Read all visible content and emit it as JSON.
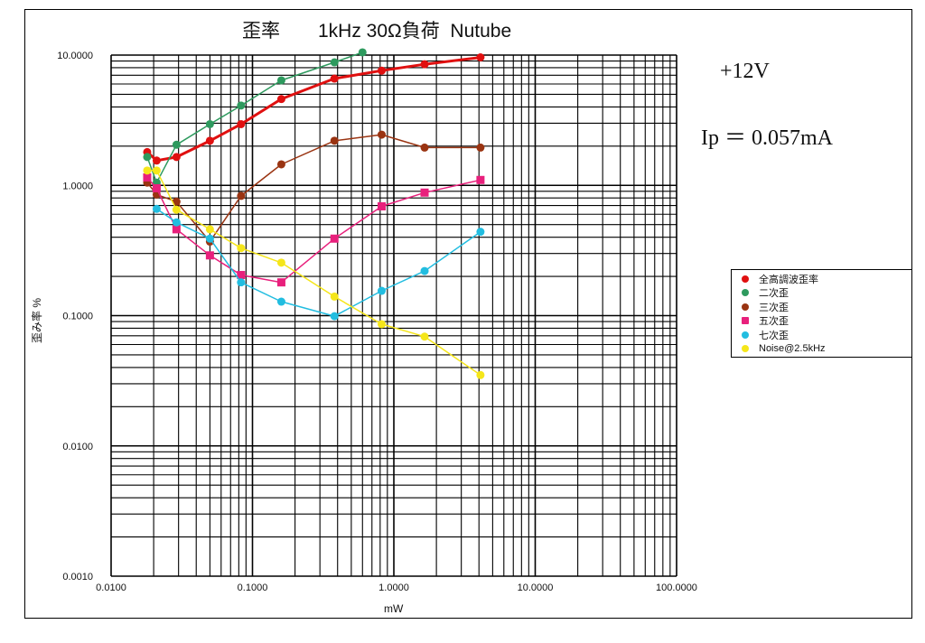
{
  "title": "歪率　　1kHz 30Ω負荷  Nutube",
  "notes": {
    "voltage": "+12V",
    "ip": "Ip ＝ 0.057mA"
  },
  "chart_data": {
    "type": "line",
    "xscale": "log",
    "yscale": "log",
    "xlim": [
      0.01,
      100
    ],
    "ylim": [
      0.001,
      10
    ],
    "xlabel": "mW",
    "ylabel": "歪み率 %",
    "grid": true,
    "legend_position": "right",
    "xticks": [
      "0.0100",
      "0.1000",
      "1.0000",
      "10.0000",
      "100.0000"
    ],
    "yticks": [
      "0.0010",
      "0.0100",
      "0.1000",
      "1.0000",
      "10.0000"
    ],
    "series": [
      {
        "name": "全高調波歪率",
        "color": "#e01010",
        "marker": "circle",
        "width": 3,
        "x": [
          0.018,
          0.021,
          0.029,
          0.05,
          0.083,
          0.16,
          0.38,
          0.82,
          1.65,
          4.1
        ],
        "y": [
          1.8,
          1.55,
          1.65,
          2.2,
          2.95,
          4.6,
          6.6,
          7.6,
          8.5,
          9.6
        ]
      },
      {
        "name": "二次歪",
        "color": "#2e9a5e",
        "marker": "circle",
        "width": 1.5,
        "x": [
          0.018,
          0.021,
          0.029,
          0.05,
          0.083,
          0.16,
          0.38,
          0.6
        ],
        "y": [
          1.65,
          1.05,
          2.05,
          2.95,
          4.1,
          6.4,
          8.8,
          10.5
        ]
      },
      {
        "name": "三次歪",
        "color": "#9a3412",
        "marker": "circle",
        "width": 1.5,
        "x": [
          0.018,
          0.021,
          0.029,
          0.05,
          0.083,
          0.16,
          0.38,
          0.82,
          1.65,
          4.1
        ],
        "y": [
          1.05,
          0.85,
          0.75,
          0.37,
          0.83,
          1.45,
          2.2,
          2.45,
          1.95,
          1.95
        ]
      },
      {
        "name": "五次歪",
        "color": "#e8207c",
        "marker": "square",
        "width": 1.5,
        "x": [
          0.018,
          0.021,
          0.029,
          0.05,
          0.083,
          0.16,
          0.38,
          0.82,
          1.65,
          4.1
        ],
        "y": [
          1.15,
          0.95,
          0.46,
          0.29,
          0.205,
          0.18,
          0.39,
          0.69,
          0.88,
          1.1
        ]
      },
      {
        "name": "七次歪",
        "color": "#22bde0",
        "marker": "circle",
        "width": 1.5,
        "x": [
          0.021,
          0.029,
          0.05,
          0.083,
          0.16,
          0.38,
          0.82,
          1.65,
          4.1
        ],
        "y": [
          0.66,
          0.52,
          0.39,
          0.18,
          0.128,
          0.099,
          0.155,
          0.22,
          0.44
        ]
      },
      {
        "name": "Noise@2.5kHz",
        "color": "#f5e61a",
        "marker": "circle",
        "width": 1.5,
        "x": [
          0.018,
          0.021,
          0.029,
          0.05,
          0.083,
          0.16,
          0.38,
          0.82,
          1.65,
          4.1
        ],
        "y": [
          1.3,
          1.3,
          0.65,
          0.46,
          0.33,
          0.255,
          0.14,
          0.086,
          0.069,
          0.035
        ]
      }
    ]
  }
}
